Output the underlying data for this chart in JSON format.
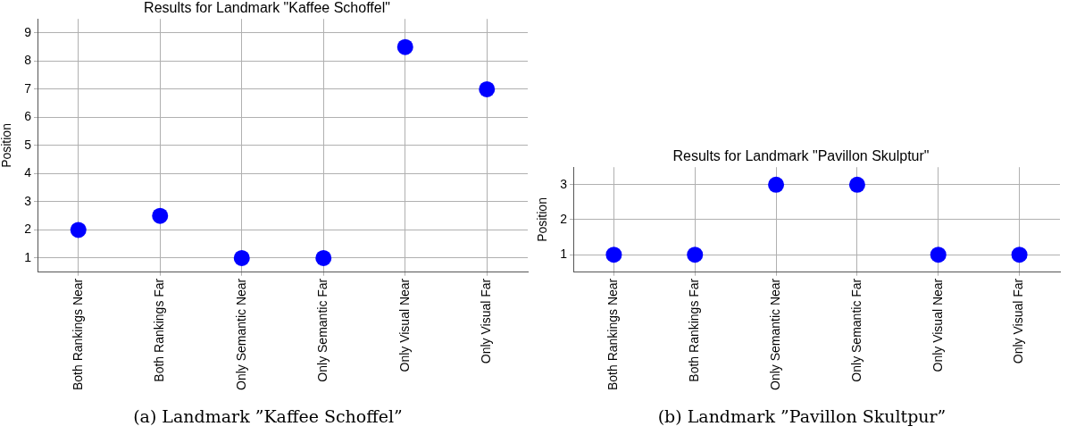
{
  "chart_data": [
    {
      "type": "scatter",
      "title": "Results for Landmark \"Kaffee Schoffel\"",
      "ylabel": "Position",
      "categories": [
        "Both Rankings Near",
        "Both Rankings Far",
        "Only Semantic Near",
        "Only Semantic Far",
        "Only Visual Near",
        "Only Visual Far"
      ],
      "values": [
        2,
        2.5,
        1,
        1,
        8.5,
        7
      ],
      "color": "#0000ff",
      "marker": "circle",
      "ylim": [
        0.5,
        9.5
      ],
      "yticks": [
        1,
        2,
        3,
        4,
        5,
        6,
        7,
        8,
        9
      ],
      "grid": true,
      "legend": false,
      "annotations": [
        "(a) Landmark ”Kaffee Schoffel”"
      ]
    },
    {
      "type": "scatter",
      "title": "Results for Landmark \"Pavillon Skulptur\"",
      "ylabel": "Position",
      "categories": [
        "Both Rankings Near",
        "Both Rankings Far",
        "Only Semantic Near",
        "Only Semantic Far",
        "Only Visual Near",
        "Only Visual Far"
      ],
      "values": [
        1,
        1,
        3,
        3,
        1,
        1
      ],
      "color": "#0000ff",
      "marker": "circle",
      "ylim": [
        0.5,
        3.5
      ],
      "yticks": [
        1,
        2,
        3
      ],
      "grid": true,
      "legend": false,
      "annotations": [
        "(b) Landmark ”Pavillon Skultpur”"
      ]
    }
  ]
}
